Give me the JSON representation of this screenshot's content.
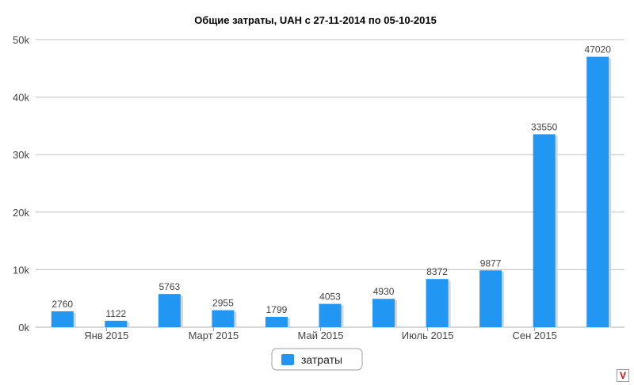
{
  "chart_data": {
    "type": "bar",
    "title": "Общие затраты, UAH с 27-11-2014 по 05-10-2015",
    "values": [
      2760,
      1122,
      5763,
      2955,
      1799,
      4053,
      4930,
      8372,
      9877,
      33550,
      47020
    ],
    "data_labels": [
      "2760",
      "1122",
      "5763",
      "2955",
      "1799",
      "4053",
      "4930",
      "8372",
      "9877",
      "33550",
      "47020"
    ],
    "x_tick_labels": [
      "Янв 2015",
      "Март 2015",
      "Май 2015",
      "Июль 2015",
      "Сен 2015"
    ],
    "y_ticks": [
      0,
      10000,
      20000,
      30000,
      40000,
      50000
    ],
    "y_tick_labels": [
      "0k",
      "10k",
      "20k",
      "30k",
      "40k",
      "50k"
    ],
    "ylim": [
      0,
      50000
    ],
    "series": [
      {
        "name": "затраты",
        "values": [
          2760,
          1122,
          5763,
          2955,
          1799,
          4053,
          4930,
          8372,
          9877,
          33550,
          47020
        ]
      }
    ],
    "legend": {
      "label": "затраты",
      "position": "bottom-center"
    },
    "grid": true,
    "colors": {
      "bar": "#2196f3",
      "shadow": "#cfd8dc",
      "grid": "#c0c0c0"
    }
  },
  "corner_mark": "V"
}
